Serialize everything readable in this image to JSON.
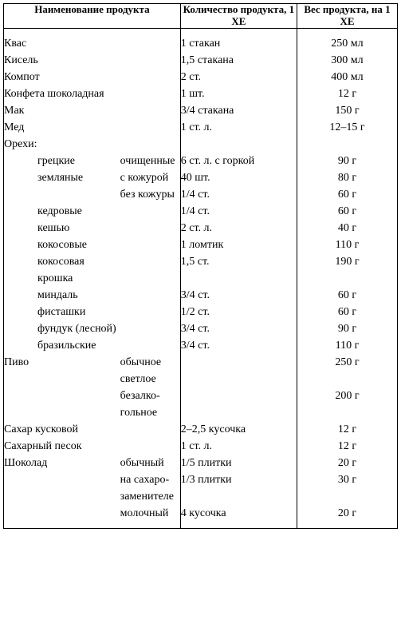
{
  "headers": {
    "name": "Наименование продукта",
    "qty": "Количество продукта, 1 ХЕ",
    "weight": "Вес продукта, на 1 ХЕ"
  },
  "rows": [
    {
      "name": "Квас",
      "note": "",
      "qty": "1 стакан",
      "weight": "250 мл"
    },
    {
      "name": "Кисель",
      "note": "",
      "qty": "1,5 стакана",
      "weight": "300 мл"
    },
    {
      "name": "Компот",
      "note": "",
      "qty": "2 ст.",
      "weight": "400 мл"
    },
    {
      "name": "Конфета шоколадная",
      "note": "",
      "qty": "1 шт.",
      "weight": "12 г"
    },
    {
      "name": "Мак",
      "note": "",
      "qty": "3/4 стакана",
      "weight": "150 г"
    },
    {
      "name": "Мед",
      "note": "",
      "qty": "1 ст. л.",
      "weight": "12–15 г"
    },
    {
      "name": "Орехи:",
      "note": "",
      "qty": "",
      "weight": ""
    },
    {
      "name": "грецкие",
      "indent": true,
      "note": "очищен­ные",
      "qty": "6 ст. л. с горкой",
      "weight": "90 г"
    },
    {
      "name": "земляные",
      "indent": true,
      "note": "с кожу­рой",
      "qty": "40 шт.",
      "weight": "80 г"
    },
    {
      "name": "",
      "note": "без ко­журы",
      "qty": "1/4 ст.",
      "weight": "60 г"
    },
    {
      "name": "кедровые",
      "indent": true,
      "note": "",
      "qty": "1/4 ст.",
      "weight": "60 г"
    },
    {
      "name": "кешью",
      "indent": true,
      "note": "",
      "qty": "2 ст. л.",
      "weight": "40 г"
    },
    {
      "name": "кокосовые",
      "indent": true,
      "note": "",
      "qty": "1 ломтик",
      "weight": "110 г"
    },
    {
      "name": "кокосовая крошка",
      "indent": true,
      "note": "",
      "qty": "1,5 ст.",
      "weight": "190 г"
    },
    {
      "name": "миндаль",
      "indent": true,
      "note": "",
      "qty": "3/4 ст.",
      "weight": "60 г"
    },
    {
      "name": "фисташки",
      "indent": true,
      "note": "",
      "qty": "1/2 ст.",
      "weight": "60 г"
    },
    {
      "name": "фундук (лесной)",
      "indent": true,
      "note": "",
      "qty": "3/4 ст.",
      "weight": "90 г"
    },
    {
      "name": "бразильские",
      "indent": true,
      "note": "",
      "qty": "3/4 ст.",
      "weight": "110 г"
    },
    {
      "name": "Пиво",
      "note": "обычное светлое",
      "qty": "",
      "weight": "250 г"
    },
    {
      "name": "",
      "note": "безалко­гольное",
      "qty": "",
      "weight": "200 г"
    },
    {
      "name": "Сахар кусковой",
      "note": "",
      "qty": "2–2,5 кусочка",
      "weight": "12 г"
    },
    {
      "name": "Сахарный песок",
      "note": "",
      "qty": "1 ст. л.",
      "weight": "12 г"
    },
    {
      "name": "Шоколад",
      "note": "обычный",
      "qty": "1/5 плитки",
      "weight": "20 г"
    },
    {
      "name": "",
      "note": "на саха­ро-заме­нителе",
      "qty": "1/3 плитки",
      "weight": "30 г"
    },
    {
      "name": "",
      "note": "молоч­ный",
      "qty": "4 кусочка",
      "weight": "20 г"
    }
  ]
}
